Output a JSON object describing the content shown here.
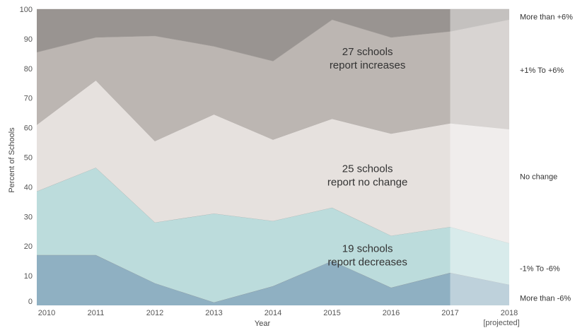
{
  "chart_data": {
    "type": "area",
    "stacked": true,
    "xlabel": "Year",
    "ylabel": "Percent of Schools",
    "ylim": [
      0,
      100
    ],
    "yticks": [
      0,
      10,
      20,
      30,
      40,
      50,
      60,
      70,
      80,
      90,
      100
    ],
    "x": [
      "2010",
      "2011",
      "2012",
      "2013",
      "2014",
      "2015",
      "2016",
      "2017",
      "2018"
    ],
    "x_note": "[projected]",
    "projected_from": "2017",
    "series": [
      {
        "name": "More than -6%",
        "color": "#8fb0c2",
        "values": [
          17,
          17,
          7.5,
          1,
          6.5,
          15,
          6,
          11,
          7
        ]
      },
      {
        "name": "-1% To -6%",
        "color": "#bcdcdc",
        "values": [
          21.5,
          29.5,
          20.5,
          30,
          22,
          18,
          17.5,
          15.5,
          14
        ]
      },
      {
        "name": "No change",
        "color": "#e6e1de",
        "values": [
          22.5,
          29.5,
          27.5,
          33.5,
          27.5,
          30,
          34.5,
          35,
          38.5
        ]
      },
      {
        "name": "+1% To +6%",
        "color": "#bcb6b2",
        "values": [
          24.5,
          14.5,
          35.5,
          23,
          26.5,
          33.5,
          32.5,
          31,
          37
        ]
      },
      {
        "name": "More than +6%",
        "color": "#999491",
        "values": [
          14.5,
          9.5,
          9,
          12.5,
          17.5,
          3.5,
          9.5,
          7.5,
          3.5
        ]
      }
    ],
    "annotations": [
      {
        "lines": [
          "27 schools",
          "report increases"
        ],
        "x": "2015.6",
        "y": 84.5
      },
      {
        "lines": [
          "25 schools",
          "report no change"
        ],
        "x": "2015.6",
        "y": 45
      },
      {
        "lines": [
          "19 schools",
          "report decreases"
        ],
        "x": "2015.6",
        "y": 18
      }
    ]
  }
}
